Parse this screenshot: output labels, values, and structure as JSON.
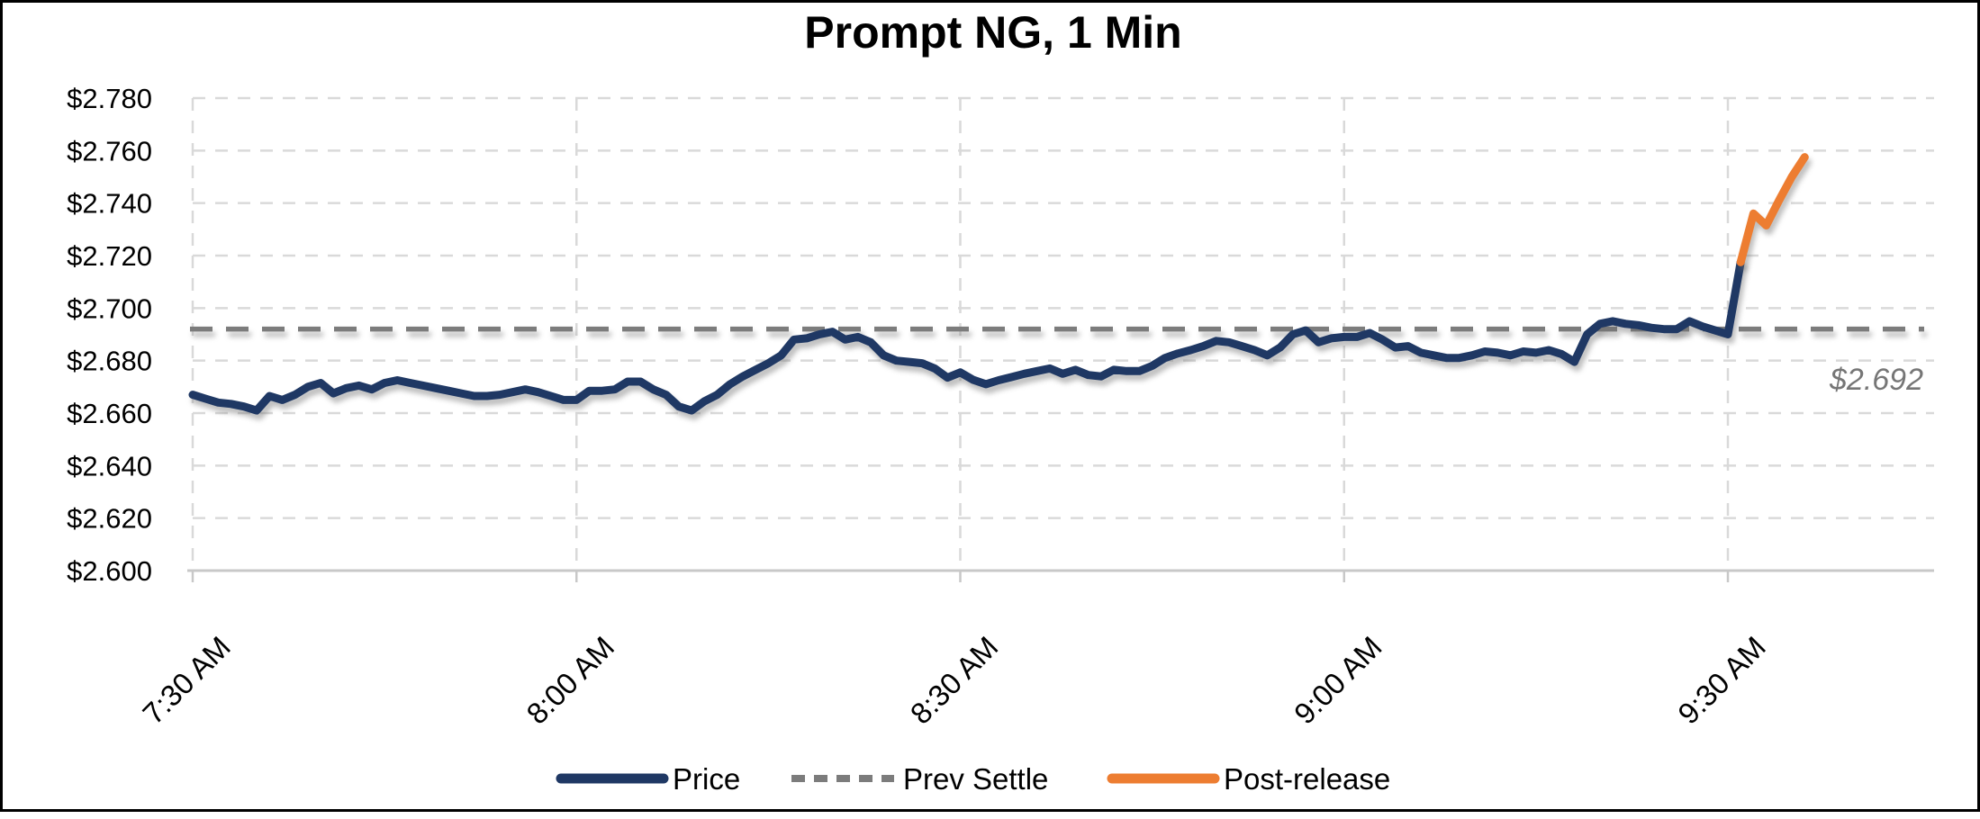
{
  "chart": {
    "title": "Prompt NG, 1 Min",
    "annotation": "$2.692",
    "colors": {
      "price": "#1F3864",
      "post_release": "#ED7D31",
      "prev_settle": "#7C7C7C",
      "gridline": "#D9D9D9",
      "axis_line": "#C8C8C8",
      "annotation_text": "#767676",
      "title_text": "#000000",
      "background": "#FFFFFF",
      "frame_border": "#000000"
    },
    "legend": [
      {
        "label": "Price",
        "color": "#1F3864",
        "style": "solid"
      },
      {
        "label": "Prev Settle",
        "color": "#7C7C7C",
        "style": "dashed"
      },
      {
        "label": "Post-release",
        "color": "#ED7D31",
        "style": "solid"
      }
    ]
  },
  "chart_data": {
    "type": "line",
    "title": "Prompt NG, 1 Min",
    "legend_position": "bottom",
    "grid": true,
    "x_axis": {
      "unit": "minutes after 7:30 AM",
      "tick_labels": [
        "7:30 AM",
        "8:00 AM",
        "8:30 AM",
        "9:00 AM",
        "9:30 AM"
      ],
      "tick_minutes": [
        0,
        30,
        60,
        90,
        120
      ],
      "range_minutes": [
        0,
        136
      ]
    },
    "y_axis": {
      "min": 2.6,
      "max": 2.78,
      "step": 0.02,
      "tick_labels": [
        "$2.600",
        "$2.620",
        "$2.640",
        "$2.660",
        "$2.680",
        "$2.700",
        "$2.720",
        "$2.740",
        "$2.760",
        "$2.780"
      ]
    },
    "prev_settle": {
      "value": 2.692,
      "label": "$2.692",
      "style": "dashed"
    },
    "series": [
      {
        "name": "Price",
        "color": "#1F3864",
        "style": "solid",
        "x_start_minute": 0,
        "x_step_minutes": 1,
        "start_time": "7:30 AM",
        "end_time": "9:31 AM",
        "values": [
          2.667,
          2.6655,
          2.664,
          2.6635,
          2.6625,
          2.661,
          2.6665,
          2.665,
          2.667,
          2.67,
          2.6715,
          2.6675,
          2.6695,
          2.6705,
          2.669,
          2.6715,
          2.6725,
          2.6715,
          2.6705,
          2.6695,
          2.6685,
          2.6675,
          2.6665,
          2.6665,
          2.667,
          2.668,
          2.669,
          2.668,
          2.6665,
          2.665,
          2.665,
          2.6685,
          2.6685,
          2.669,
          2.672,
          2.672,
          2.669,
          2.667,
          2.6625,
          2.661,
          2.6645,
          2.667,
          2.671,
          2.674,
          2.6765,
          2.679,
          2.682,
          2.688,
          2.6885,
          2.69,
          2.691,
          2.688,
          2.689,
          2.687,
          2.682,
          2.68,
          2.6795,
          2.679,
          2.677,
          2.6735,
          2.6755,
          2.6727,
          2.671,
          2.6725,
          2.6737,
          2.675,
          2.676,
          2.677,
          2.675,
          2.6765,
          2.6745,
          2.674,
          2.6765,
          2.676,
          2.676,
          2.678,
          2.681,
          2.6827,
          2.684,
          2.6855,
          2.6875,
          2.687,
          2.6855,
          2.684,
          2.682,
          2.685,
          2.69,
          2.6915,
          2.687,
          2.6885,
          2.689,
          2.689,
          2.6905,
          2.688,
          2.685,
          2.6855,
          2.683,
          2.682,
          2.681,
          2.681,
          2.682,
          2.6835,
          2.683,
          2.682,
          2.6835,
          2.683,
          2.684,
          2.6825,
          2.6795,
          2.69,
          2.694,
          2.695,
          2.694,
          2.6935,
          2.6925,
          2.692,
          2.692,
          2.695,
          2.693,
          2.6915,
          2.69,
          2.7175
        ]
      },
      {
        "name": "Post-release",
        "color": "#ED7D31",
        "style": "solid",
        "x_start_minute": 121,
        "x_step_minutes": 1,
        "start_time": "9:31 AM",
        "end_time": "9:36 AM",
        "values": [
          2.7175,
          2.736,
          2.7315,
          2.741,
          2.75,
          2.7575
        ]
      }
    ]
  }
}
